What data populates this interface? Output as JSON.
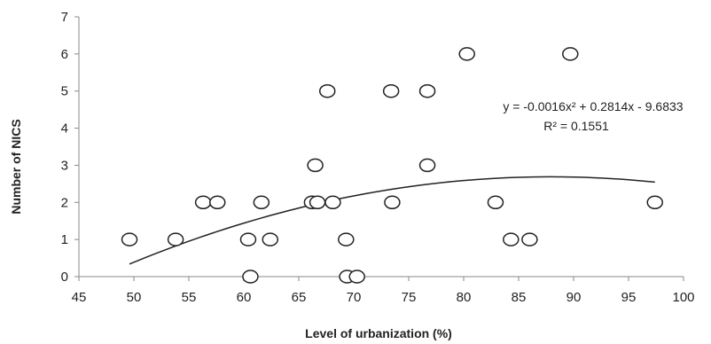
{
  "chart_data": {
    "type": "scatter",
    "xlabel": "Level of urbanization (%)",
    "ylabel": "Number of NICS",
    "xlim": [
      45,
      100
    ],
    "ylim": [
      0,
      7
    ],
    "x_ticks": [
      45,
      50,
      55,
      60,
      65,
      70,
      75,
      80,
      85,
      90,
      95,
      100
    ],
    "y_ticks": [
      0,
      1,
      2,
      3,
      4,
      5,
      6,
      7
    ],
    "grid": false,
    "legend": "none",
    "points": [
      {
        "x": 49.6,
        "y": 1
      },
      {
        "x": 53.8,
        "y": 1
      },
      {
        "x": 56.3,
        "y": 2
      },
      {
        "x": 57.6,
        "y": 2
      },
      {
        "x": 60.4,
        "y": 1
      },
      {
        "x": 60.6,
        "y": 0
      },
      {
        "x": 61.6,
        "y": 2
      },
      {
        "x": 62.4,
        "y": 1
      },
      {
        "x": 66.2,
        "y": 2
      },
      {
        "x": 66.5,
        "y": 3
      },
      {
        "x": 66.7,
        "y": 2
      },
      {
        "x": 67.6,
        "y": 5
      },
      {
        "x": 68.1,
        "y": 2
      },
      {
        "x": 69.3,
        "y": 1
      },
      {
        "x": 69.4,
        "y": 0
      },
      {
        "x": 70.3,
        "y": 0
      },
      {
        "x": 73.4,
        "y": 5
      },
      {
        "x": 73.5,
        "y": 2
      },
      {
        "x": 76.7,
        "y": 3
      },
      {
        "x": 76.7,
        "y": 5
      },
      {
        "x": 80.3,
        "y": 6
      },
      {
        "x": 82.9,
        "y": 2
      },
      {
        "x": 84.3,
        "y": 1
      },
      {
        "x": 86.0,
        "y": 1
      },
      {
        "x": 89.7,
        "y": 6
      },
      {
        "x": 97.4,
        "y": 2
      }
    ],
    "trendline": {
      "type": "polynomial",
      "coefficients": [
        -0.0016,
        0.2814,
        -9.6833
      ],
      "x_range": [
        49.6,
        97.4
      ],
      "equation": "y = -0.0016x² + 0.2814x - 9.6833",
      "r_squared": "R² = 0.1551"
    },
    "colors": {
      "marker_stroke": "#222222",
      "trendline": "#222222",
      "axis": "#888888"
    }
  }
}
